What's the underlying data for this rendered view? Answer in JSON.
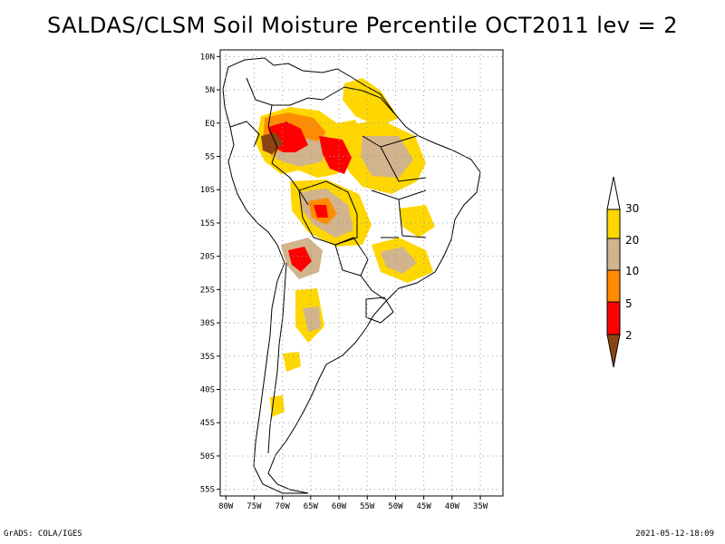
{
  "title": "SALDAS/CLSM Soil Moisture Percentile OCT2011 lev = 2",
  "chart_data": {
    "type": "map",
    "title": "SALDAS/CLSM Soil Moisture Percentile OCT2011 lev = 2",
    "region": "South America",
    "lon_range": [
      -81,
      -31
    ],
    "lat_range": [
      -56,
      11
    ],
    "x_ticks": [
      -80,
      -75,
      -70,
      -65,
      -60,
      -55,
      -50,
      -45,
      -40,
      -35
    ],
    "x_tick_labels": [
      "80W",
      "75W",
      "70W",
      "65W",
      "60W",
      "55W",
      "50W",
      "45W",
      "40W",
      "35W"
    ],
    "y_ticks": [
      10,
      5,
      0,
      -5,
      -10,
      -15,
      -20,
      -25,
      -30,
      -35,
      -40,
      -45,
      -50,
      -55
    ],
    "y_tick_labels": [
      "10N",
      "5N",
      "EQ",
      "5S",
      "10S",
      "15S",
      "20S",
      "25S",
      "30S",
      "35S",
      "40S",
      "45S",
      "50S",
      "55S"
    ],
    "grid": true,
    "legend": {
      "placement": "right",
      "levels": [
        "2",
        "5",
        "10",
        "20",
        "30"
      ],
      "colors": [
        "#8B4513",
        "#FF0000",
        "#FF8C00",
        "#D2B48C",
        "#FFD700",
        "#FFFFFF"
      ]
    }
  },
  "footer": {
    "left": "GrADS: COLA/IGES",
    "right": "2021-05-12-18:09"
  }
}
